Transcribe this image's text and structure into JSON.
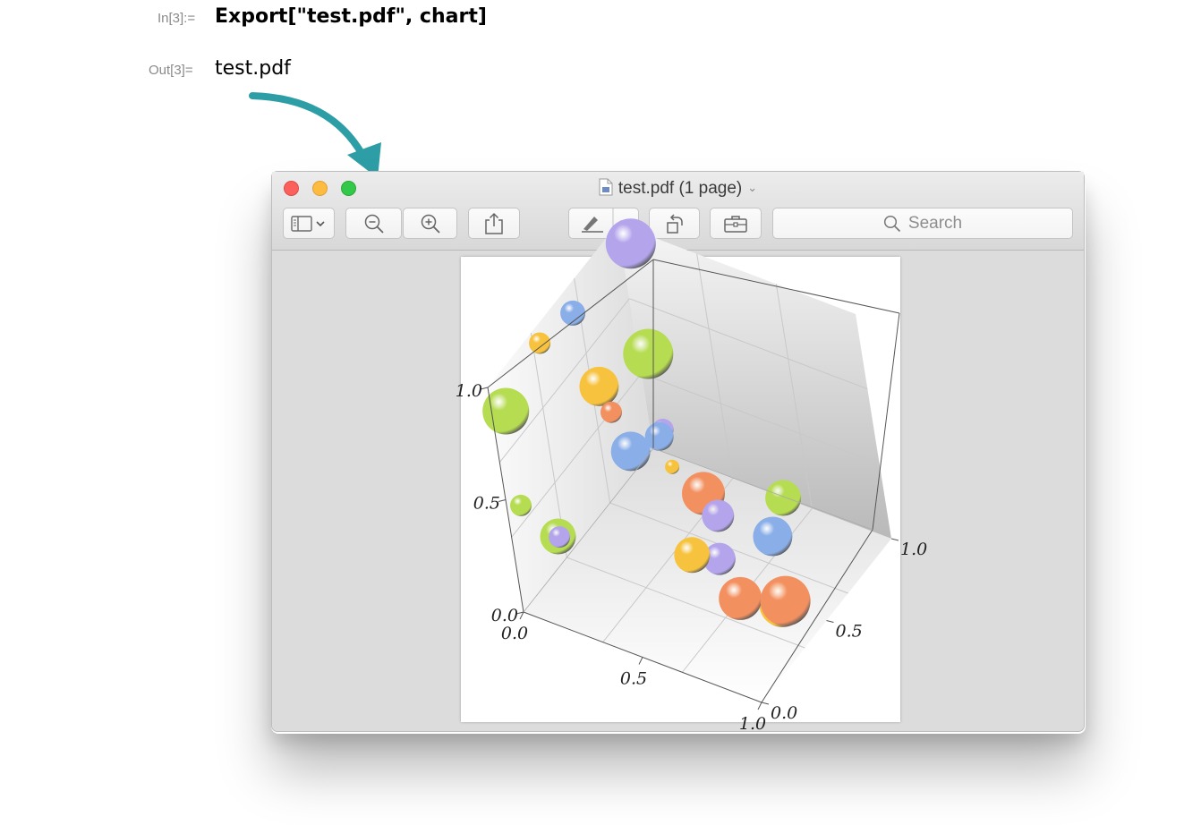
{
  "notebook": {
    "in_label": "In[3]:=",
    "in_code": "Export[\"test.pdf\", chart]",
    "out_label": "Out[3]=",
    "out_value": "test.pdf"
  },
  "window": {
    "title": "test.pdf (1 page)",
    "search_placeholder": "Search"
  },
  "colors": {
    "arrow": "#2e9ea6",
    "close": "#fc605c",
    "minimize": "#fdbc40",
    "maximize": "#34c84a"
  },
  "icons": [
    "sidebar-icon",
    "zoom-out-icon",
    "zoom-in-icon",
    "share-icon",
    "markup-pen-icon",
    "rotate-icon",
    "toolbox-icon",
    "search-icon"
  ],
  "chart_data": {
    "type": "bubble3d",
    "title": "",
    "x_ticks": [
      "0.0",
      "0.5",
      "1.0"
    ],
    "y_ticks": [
      "0.0",
      "0.5",
      "1.0"
    ],
    "z_ticks": [
      "0.0",
      "0.5",
      "1.0"
    ],
    "xlim": [
      0,
      1
    ],
    "ylim": [
      0,
      1
    ],
    "zlim": [
      0,
      1
    ],
    "series_colors": {
      "purple": "#b3a4ec",
      "blue": "#8aaee8",
      "green": "#b6dc52",
      "orange": "#f39060",
      "yellow": "#f7c33e"
    },
    "points": [
      {
        "x": 0.08,
        "y": 0.95,
        "z": 0.98,
        "size": 0.14,
        "color": "purple"
      },
      {
        "x": 0.17,
        "y": 0.82,
        "z": 0.62,
        "size": 0.14,
        "color": "green"
      },
      {
        "x": 0.05,
        "y": 0.55,
        "z": 0.95,
        "size": 0.07,
        "color": "blue"
      },
      {
        "x": 0.02,
        "y": 0.35,
        "z": 0.95,
        "size": 0.06,
        "color": "yellow"
      },
      {
        "x": 0.15,
        "y": 0.5,
        "z": 0.7,
        "size": 0.11,
        "color": "yellow"
      },
      {
        "x": 0.2,
        "y": 0.48,
        "z": 0.62,
        "size": 0.06,
        "color": "orange"
      },
      {
        "x": 0.05,
        "y": 0.02,
        "z": 0.9,
        "size": 0.13,
        "color": "green"
      },
      {
        "x": 0.05,
        "y": 0.02,
        "z": 0.48,
        "size": 0.06,
        "color": "green"
      },
      {
        "x": 0.18,
        "y": 0.04,
        "z": 0.38,
        "size": 0.1,
        "color": "green"
      },
      {
        "x": 0.2,
        "y": 0.02,
        "z": 0.4,
        "size": 0.06,
        "color": "purple"
      },
      {
        "x": 0.28,
        "y": 0.45,
        "z": 0.5,
        "size": 0.11,
        "color": "blue"
      },
      {
        "x": 0.3,
        "y": 0.62,
        "z": 0.45,
        "size": 0.08,
        "color": "blue"
      },
      {
        "x": 0.3,
        "y": 0.65,
        "z": 0.46,
        "size": 0.06,
        "color": "purple"
      },
      {
        "x": 0.35,
        "y": 0.6,
        "z": 0.35,
        "size": 0.04,
        "color": "yellow"
      },
      {
        "x": 0.45,
        "y": 0.63,
        "z": 0.25,
        "size": 0.12,
        "color": "orange"
      },
      {
        "x": 0.5,
        "y": 0.64,
        "z": 0.18,
        "size": 0.04,
        "color": "blue"
      },
      {
        "x": 0.52,
        "y": 0.6,
        "z": 0.2,
        "size": 0.09,
        "color": "purple"
      },
      {
        "x": 0.6,
        "y": 0.45,
        "z": 0.15,
        "size": 0.09,
        "color": "purple"
      },
      {
        "x": 0.55,
        "y": 0.35,
        "z": 0.22,
        "size": 0.1,
        "color": "yellow"
      },
      {
        "x": 0.7,
        "y": 0.4,
        "z": 0.05,
        "size": 0.12,
        "color": "orange"
      },
      {
        "x": 0.65,
        "y": 0.85,
        "z": 0.15,
        "size": 0.1,
        "color": "green"
      },
      {
        "x": 0.68,
        "y": 0.7,
        "z": 0.1,
        "size": 0.11,
        "color": "blue"
      },
      {
        "x": 0.85,
        "y": 0.45,
        "z": 0.05,
        "size": 0.13,
        "color": "yellow"
      },
      {
        "x": 0.9,
        "y": 0.4,
        "z": 0.12,
        "size": 0.14,
        "color": "orange"
      }
    ]
  }
}
